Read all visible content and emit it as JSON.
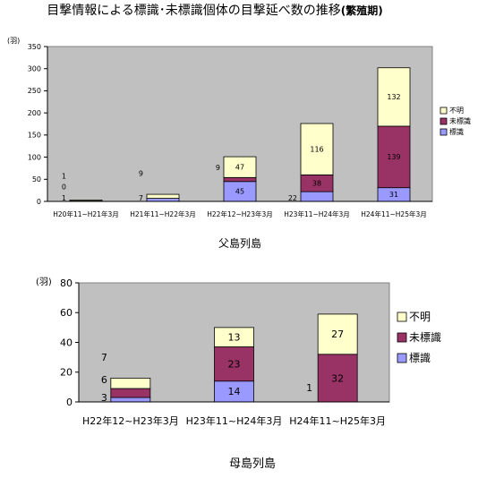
{
  "title_main": "目撃情報による標識･未標識個体の目撃延べ数の推移",
  "title_suffix": "(繁殖期)",
  "colors": {
    "plot_bg": "#c0c0c0",
    "bar_border": "#000000",
    "標識": "#9999ff",
    "未標識": "#993366",
    "不明": "#ffffcc"
  },
  "chart_data": [
    {
      "type": "bar",
      "stacked": true,
      "caption": "父島列島",
      "unit": "(羽)",
      "ylim": [
        0,
        350
      ],
      "yticks": [
        0,
        50,
        100,
        150,
        200,
        250,
        300,
        350
      ],
      "categories": [
        "H20年11~H21年3月",
        "H21年11~H22年3月",
        "H22年12~H23年3月",
        "H23年11~H24年3月",
        "H24年11~H25年3月"
      ],
      "series": [
        {
          "name": "標識",
          "values": [
            1,
            7,
            45,
            22,
            31
          ]
        },
        {
          "name": "未標識",
          "values": [
            0,
            0,
            9,
            38,
            139
          ]
        },
        {
          "name": "不明",
          "values": [
            1,
            9,
            47,
            116,
            132
          ]
        }
      ],
      "value_labels": [
        [
          "1",
          "0",
          "1"
        ],
        [
          "7",
          "",
          "9"
        ],
        [
          "45",
          "9",
          "47"
        ],
        [
          "22",
          "38",
          "116"
        ],
        [
          "31",
          "139",
          "132"
        ]
      ],
      "legend": {
        "position": "right",
        "entries": [
          "不明",
          "未標識",
          "標識"
        ]
      },
      "grid": false
    },
    {
      "type": "bar",
      "stacked": true,
      "caption": "母島列島",
      "unit": "(羽)",
      "ylim": [
        0,
        80
      ],
      "yticks": [
        0,
        20,
        40,
        60,
        80
      ],
      "categories": [
        "H22年12~H23年3月",
        "H23年11~H24年3月",
        "H24年11~H25年3月"
      ],
      "series": [
        {
          "name": "標識",
          "values": [
            3,
            14,
            0
          ]
        },
        {
          "name": "未標識",
          "values": [
            6,
            23,
            32
          ]
        },
        {
          "name": "不明",
          "values": [
            7,
            13,
            27
          ]
        }
      ],
      "value_labels": [
        [
          "3",
          "6",
          "7"
        ],
        [
          "14",
          "23",
          "13"
        ],
        [
          "",
          "32",
          "27"
        ]
      ],
      "extra_labels": [
        {
          "category": 2,
          "text": "1"
        }
      ],
      "legend": {
        "position": "right",
        "entries": [
          "不明",
          "未標識",
          "標識"
        ]
      },
      "grid": false
    }
  ]
}
